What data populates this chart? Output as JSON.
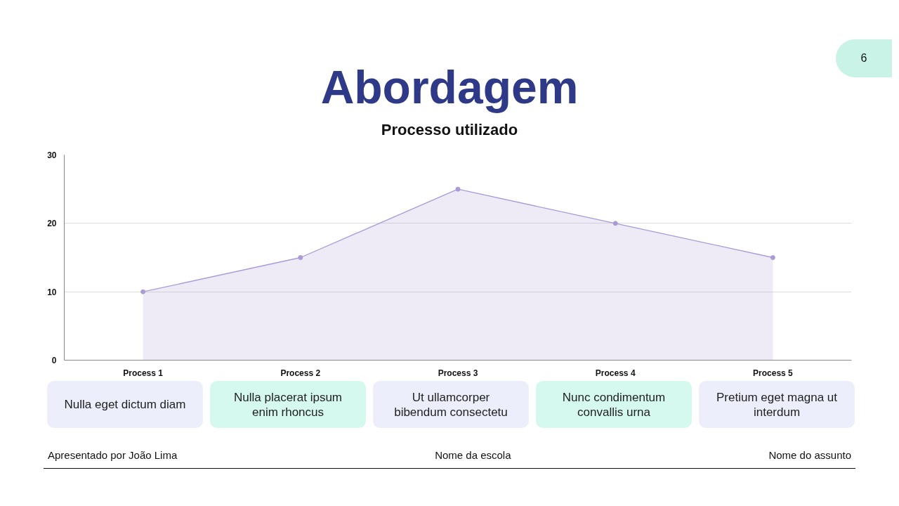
{
  "chart_data": {
    "type": "area",
    "title": "Abordagem",
    "subtitle": "Processo utilizado",
    "categories": [
      "Process 1",
      "Process 2",
      "Process 3",
      "Process 4",
      "Process 5"
    ],
    "series": [
      {
        "color": "#a99bd6",
        "values": [
          10,
          15,
          25,
          20,
          15
        ]
      }
    ],
    "ylim": [
      0,
      30
    ],
    "yticks": [
      0,
      10,
      20,
      30
    ],
    "grid": "y",
    "marker": "circle",
    "annotations": [
      "6",
      "Nulla eget dictum diam",
      "Nulla placerat ipsum enim rhoncus",
      "Ut ullamcorper bibendum consectetu",
      "Nunc condimentum convallis urna",
      "Pretium eget magna ut interdum",
      "Apresentado por João Lima",
      "Nome da escola",
      "Nome do assunto"
    ]
  }
}
